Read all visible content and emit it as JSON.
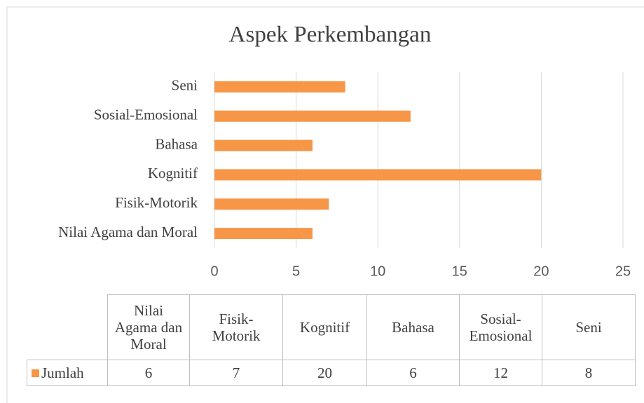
{
  "chart_data": {
    "type": "bar",
    "orientation": "horizontal",
    "title": "Aspek Perkembangan",
    "categories": [
      "Nilai Agama dan Moral",
      "Fisik-Motorik",
      "Kognitif",
      "Bahasa",
      "Sosial-Emosional",
      "Seni"
    ],
    "series": [
      {
        "name": "Jumlah",
        "color": "#f79646",
        "values": [
          6,
          7,
          20,
          6,
          12,
          8
        ]
      }
    ],
    "xlim": [
      0,
      25
    ],
    "xticks": [
      0,
      5,
      10,
      15,
      20,
      25
    ],
    "grid": true,
    "data_table": true
  }
}
